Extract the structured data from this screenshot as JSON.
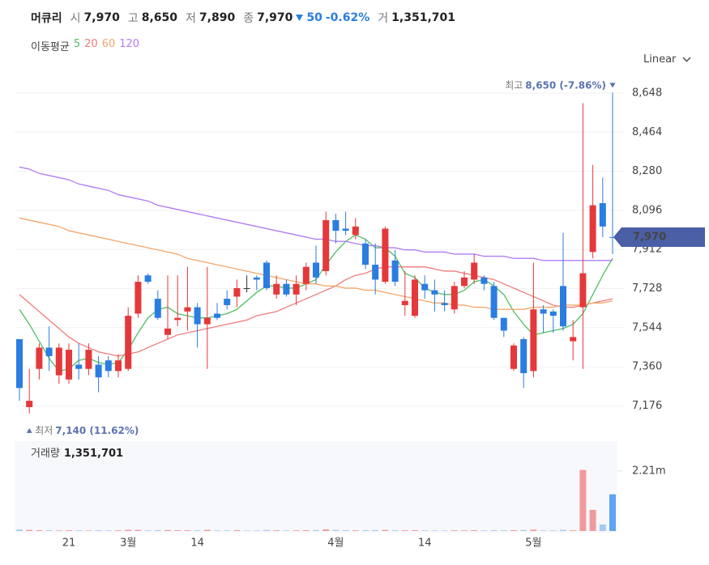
{
  "header": {
    "name": "머큐리",
    "items": [
      {
        "label": "시",
        "value": "7,970"
      },
      {
        "label": "고",
        "value": "8,650"
      },
      {
        "label": "저",
        "value": "7,890"
      },
      {
        "label": "종",
        "value": "7,970"
      }
    ],
    "change": "50",
    "change_pct": "-0.62%",
    "volume_label": "거",
    "volume": "1,351,701"
  },
  "chart_data": [
    {
      "type": "candlestick",
      "scale": "Linear",
      "grid": true,
      "legend_title": "이동평균",
      "up_color": "#e5383b",
      "down_color": "#2a7de1",
      "flat_color": "#333333",
      "categories": [
        null,
        null,
        null,
        null,
        null,
        "21",
        null,
        null,
        null,
        null,
        null,
        "3월",
        null,
        null,
        null,
        null,
        null,
        null,
        "14",
        null,
        null,
        null,
        null,
        null,
        null,
        null,
        null,
        null,
        null,
        null,
        null,
        null,
        "4월",
        null,
        null,
        null,
        null,
        null,
        null,
        null,
        null,
        "14",
        null,
        null,
        null,
        null,
        null,
        null,
        null,
        null,
        null,
        null,
        "5월",
        null,
        null,
        null,
        null,
        null,
        null,
        null,
        null
      ],
      "open": [
        7490,
        7170,
        7350,
        7450,
        7320,
        7300,
        7370,
        7350,
        7370,
        7390,
        7340,
        7350,
        7610,
        7790,
        7680,
        7510,
        7580,
        7620,
        7640,
        7560,
        7610,
        7680,
        7690,
        7730,
        7780,
        7850,
        7700,
        7750,
        7700,
        7750,
        7850,
        7810,
        8050,
        8010,
        7980,
        7940,
        7840,
        7760,
        7860,
        7650,
        7600,
        7750,
        7720,
        7660,
        7630,
        7740,
        7770,
        7780,
        7740,
        7590,
        7350,
        7490,
        7340,
        7630,
        7620,
        7740,
        7480,
        7640,
        7900,
        8130,
        7970
      ],
      "high": [
        7490,
        7350,
        7470,
        7550,
        7470,
        7470,
        7470,
        7470,
        7410,
        7410,
        7420,
        7640,
        7790,
        7800,
        7720,
        7790,
        7790,
        7830,
        7660,
        7830,
        7660,
        7720,
        7770,
        7790,
        7790,
        7860,
        7790,
        7770,
        7790,
        7850,
        7930,
        8090,
        8080,
        8090,
        8060,
        7960,
        7940,
        8020,
        7910,
        7810,
        7790,
        7790,
        7770,
        7720,
        7760,
        7810,
        7890,
        7790,
        7760,
        7590,
        7470,
        7500,
        7850,
        7650,
        7630,
        7990,
        7580,
        8600,
        8310,
        8250,
        8650
      ],
      "low": [
        7200,
        7140,
        7300,
        7340,
        7280,
        7280,
        7300,
        7320,
        7240,
        7310,
        7310,
        7340,
        7590,
        7750,
        7580,
        7490,
        7550,
        7530,
        7450,
        7350,
        7580,
        7630,
        7640,
        7710,
        7720,
        7720,
        7680,
        7690,
        7650,
        7720,
        7750,
        7790,
        7940,
        7980,
        7960,
        7820,
        7700,
        7750,
        7740,
        7600,
        7590,
        7680,
        7620,
        7620,
        7610,
        7730,
        7750,
        7720,
        7580,
        7500,
        7340,
        7260,
        7310,
        7520,
        7520,
        7530,
        7390,
        7350,
        7870,
        7970,
        7890
      ],
      "close": [
        7260,
        7200,
        7450,
        7410,
        7450,
        7440,
        7350,
        7440,
        7310,
        7340,
        7390,
        7600,
        7760,
        7760,
        7590,
        7540,
        7590,
        7640,
        7560,
        7590,
        7590,
        7650,
        7730,
        7730,
        7770,
        7730,
        7750,
        7700,
        7750,
        7830,
        7780,
        8050,
        8000,
        8000,
        8020,
        7840,
        7770,
        8010,
        7760,
        7670,
        7770,
        7720,
        7700,
        7650,
        7740,
        7780,
        7850,
        7750,
        7590,
        7530,
        7460,
        7330,
        7630,
        7610,
        7600,
        7550,
        7500,
        7800,
        8120,
        8020,
        7970
      ],
      "series": [
        {
          "name": "5",
          "color": "#4fbf64",
          "values": [
            7630,
            7560,
            7480,
            7400,
            7340,
            7350,
            7390,
            7400,
            7380,
            7370,
            7380,
            7440,
            7520,
            7590,
            7630,
            7640,
            7610,
            7600,
            7590,
            7590,
            7600,
            7610,
            7630,
            7670,
            7710,
            7740,
            7740,
            7730,
            7730,
            7750,
            7770,
            7840,
            7900,
            7950,
            7980,
            7960,
            7920,
            7920,
            7880,
            7800,
            7780,
            7730,
            7710,
            7700,
            7700,
            7720,
            7760,
            7770,
            7740,
            7700,
            7620,
            7560,
            7510,
            7520,
            7530,
            7540,
            7560,
            7610,
            7700,
            7790,
            7870
          ]
        },
        {
          "name": "20",
          "color": "#ef7b7b",
          "values": [
            7700,
            7660,
            7620,
            7580,
            7540,
            7500,
            7470,
            7450,
            7430,
            7420,
            7410,
            7420,
            7430,
            7450,
            7470,
            7490,
            7510,
            7520,
            7530,
            7540,
            7550,
            7560,
            7570,
            7580,
            7600,
            7610,
            7620,
            7640,
            7660,
            7680,
            7700,
            7720,
            7740,
            7770,
            7790,
            7800,
            7820,
            7830,
            7830,
            7830,
            7830,
            7830,
            7820,
            7810,
            7810,
            7800,
            7790,
            7780,
            7770,
            7750,
            7730,
            7710,
            7690,
            7670,
            7650,
            7640,
            7640,
            7650,
            7660,
            7670,
            7680
          ]
        },
        {
          "name": "60",
          "color": "#f5a66b",
          "values": [
            8060,
            8050,
            8040,
            8030,
            8020,
            8000,
            7990,
            7980,
            7970,
            7960,
            7950,
            7940,
            7930,
            7920,
            7910,
            7900,
            7890,
            7870,
            7860,
            7850,
            7840,
            7830,
            7820,
            7810,
            7800,
            7790,
            7780,
            7770,
            7760,
            7750,
            7750,
            7740,
            7740,
            7730,
            7730,
            7720,
            7720,
            7710,
            7700,
            7690,
            7680,
            7670,
            7660,
            7660,
            7650,
            7650,
            7640,
            7640,
            7630,
            7630,
            7630,
            7630,
            7640,
            7640,
            7640,
            7650,
            7650,
            7650,
            7660,
            7660,
            7670
          ]
        },
        {
          "name": "120",
          "color": "#b07cf0",
          "values": [
            8300,
            8290,
            8270,
            8260,
            8250,
            8240,
            8220,
            8210,
            8200,
            8190,
            8170,
            8160,
            8150,
            8140,
            8120,
            8110,
            8100,
            8090,
            8080,
            8070,
            8060,
            8050,
            8040,
            8030,
            8020,
            8010,
            8000,
            7990,
            7980,
            7970,
            7960,
            7960,
            7950,
            7950,
            7940,
            7930,
            7930,
            7920,
            7920,
            7910,
            7910,
            7900,
            7900,
            7900,
            7890,
            7890,
            7890,
            7880,
            7880,
            7880,
            7870,
            7870,
            7870,
            7860,
            7860,
            7860,
            7860,
            7860,
            7860,
            7860,
            7860
          ]
        }
      ],
      "ylim": [
        7048,
        8724
      ],
      "yticks": [
        {
          "value": 8648,
          "label": "8,648"
        },
        {
          "value": 8464,
          "label": "8,464"
        },
        {
          "value": 8280,
          "label": "8,280"
        },
        {
          "value": 8096,
          "label": "8,096"
        },
        {
          "value": 7912,
          "label": "7,912"
        },
        {
          "value": 7728,
          "label": "7,728"
        },
        {
          "value": 7544,
          "label": "7,544"
        },
        {
          "value": 7360,
          "label": "7,360"
        },
        {
          "value": 7176,
          "label": "7,176"
        }
      ],
      "high_label": {
        "prefix": "최고",
        "text": "8,650 (-7.86%)"
      },
      "low_label": {
        "prefix": "최저",
        "text": "7,140 (11.62%)"
      },
      "price_tag": {
        "value": 7970,
        "label": "7,970"
      }
    },
    {
      "type": "bar",
      "title": "거래량",
      "title_value": "1,351,701",
      "up_color": "#f19a9d",
      "down_color": "#a7c9f2",
      "current_color": "#5ea4f1",
      "values": [
        52000,
        38000,
        30000,
        25000,
        20000,
        28000,
        22000,
        18000,
        26000,
        20000,
        24000,
        45000,
        40000,
        22000,
        30000,
        35000,
        28000,
        26000,
        24000,
        42000,
        20000,
        22000,
        30000,
        18000,
        20000,
        36000,
        24000,
        20000,
        22000,
        30000,
        34000,
        60000,
        40000,
        28000,
        24000,
        30000,
        32000,
        40000,
        28000,
        26000,
        30000,
        22000,
        20000,
        18000,
        24000,
        22000,
        30000,
        20000,
        28000,
        24000,
        30000,
        36000,
        48000,
        22000,
        20000,
        40000,
        26000,
        2250000,
        780000,
        240000,
        1351701
      ],
      "ylim": [
        0,
        3310000
      ],
      "yticks": [
        {
          "value": 2210000,
          "label": "2.21m"
        }
      ]
    }
  ]
}
